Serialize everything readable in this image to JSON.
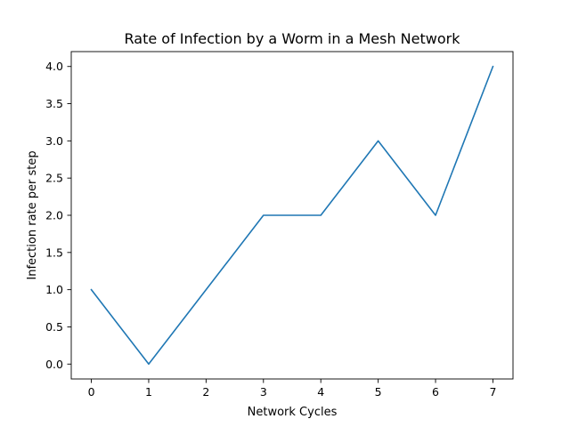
{
  "chart_data": {
    "type": "line",
    "title": "Rate of Infection by a Worm in a Mesh Network",
    "xlabel": "Network Cycles",
    "ylabel": "Infection rate per step",
    "x": [
      0,
      1,
      2,
      3,
      4,
      5,
      6,
      7
    ],
    "series": [
      {
        "values": [
          1.0,
          0.0,
          1.0,
          2.0,
          2.0,
          3.0,
          2.0,
          4.0
        ],
        "color": "#1f77b4"
      }
    ],
    "xlim": [
      -0.35,
      7.35
    ],
    "ylim": [
      -0.2,
      4.2
    ],
    "xticks": [
      0,
      1,
      2,
      3,
      4,
      5,
      6,
      7
    ],
    "xtick_labels": [
      "0",
      "1",
      "2",
      "3",
      "4",
      "5",
      "6",
      "7"
    ],
    "yticks": [
      0,
      0.5,
      1,
      1.5,
      2,
      2.5,
      3,
      3.5,
      4
    ],
    "ytick_labels": [
      "0.0",
      "0.5",
      "1.0",
      "1.5",
      "2.0",
      "2.5",
      "3.0",
      "3.5",
      "4.0"
    ],
    "grid": false,
    "legend": false
  }
}
